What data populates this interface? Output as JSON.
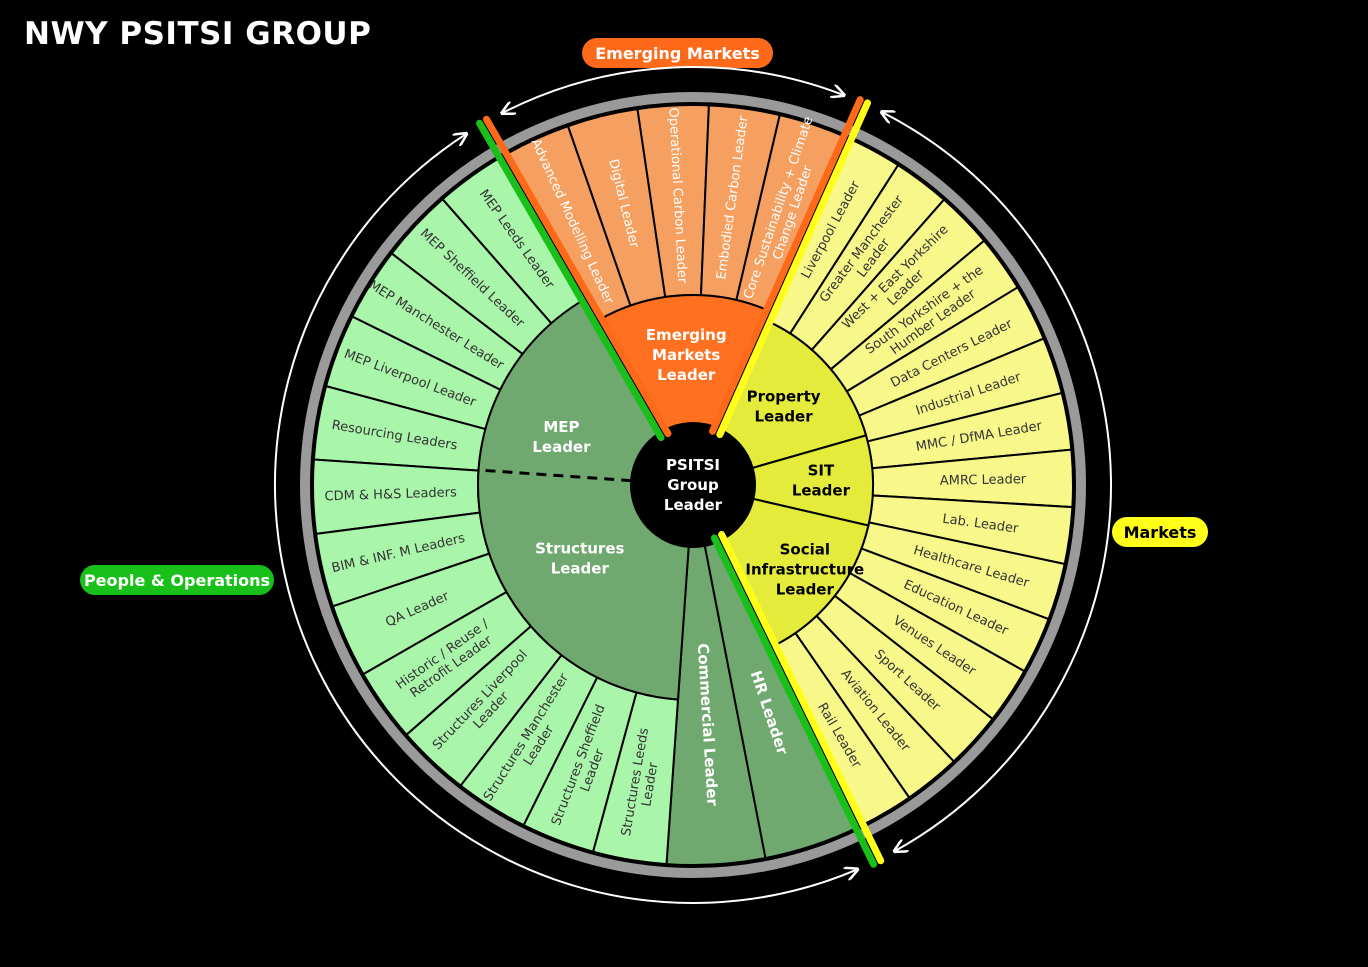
{
  "title": "NWY PSITSI GROUP",
  "groups": {
    "emerging": "Emerging Markets",
    "people": "People & Operations",
    "markets": "Markets"
  },
  "center": [
    "PSITSI",
    "Group",
    "Leader"
  ],
  "colors": {
    "em_outer": "#f5a060",
    "em_inner": "#ff7020",
    "po_outer": "#a9f5a9",
    "po_inner": "#6fa96f",
    "mk_outer": "#f7f78a",
    "mk_inner": "#e4eb3a",
    "green_line": "#19c019",
    "yellow_line": "#ffff1a",
    "orange_line": "#ff6a1a",
    "ring": "#9a9a9a"
  },
  "emerging_outer": [
    "Advanced Modelling Leader",
    "Digital Leader",
    "Operational Carbon Leader",
    "Embodied Carbon Leader",
    "Core Sustainability + Climate Change Leader"
  ],
  "emerging_inner": [
    "Emerging",
    "Markets",
    "Leader"
  ],
  "markets_outer": [
    "Liverpool Leader",
    "Greater Manchester Leader",
    "West + East Yorkshire Leader",
    "South Yorkshire + the Humber Leader",
    "Data Centers Leader",
    "Industrial Leader",
    "MMC / DfMA Leader",
    "AMRC Leader",
    "Lab. Leader",
    "Healthcare Leader",
    "Education Leader",
    "Venues Leader",
    "Sport Leader",
    "Aviation Leader",
    "Rail Leader"
  ],
  "markets_inner": {
    "property": [
      "Property",
      "Leader"
    ],
    "sit": [
      "SIT",
      "Leader"
    ],
    "social": [
      "Social",
      "Infrastructure",
      "Leader"
    ]
  },
  "people_outer": [
    "MEP Leeds Leader",
    "MEP Sheffield Leader",
    "MEP Manchester Leader",
    "MEP Liverpool Leader",
    "Resourcing Leaders",
    "CDM & H&S Leaders",
    "BIM & INF. M Leaders",
    "QA Leader",
    "Historic / Reuse / Retrofit Leader",
    "Structures Liverpool Leader",
    "Structures Manchester Leader",
    "Structures Sheffield Leader",
    "Structures Leeds Leader"
  ],
  "people_inner": {
    "mep": [
      "MEP",
      "Leader"
    ],
    "structures": [
      "Structures",
      "Leader"
    ]
  },
  "people_strips": [
    "Commercial Leader",
    "HR Leader"
  ]
}
